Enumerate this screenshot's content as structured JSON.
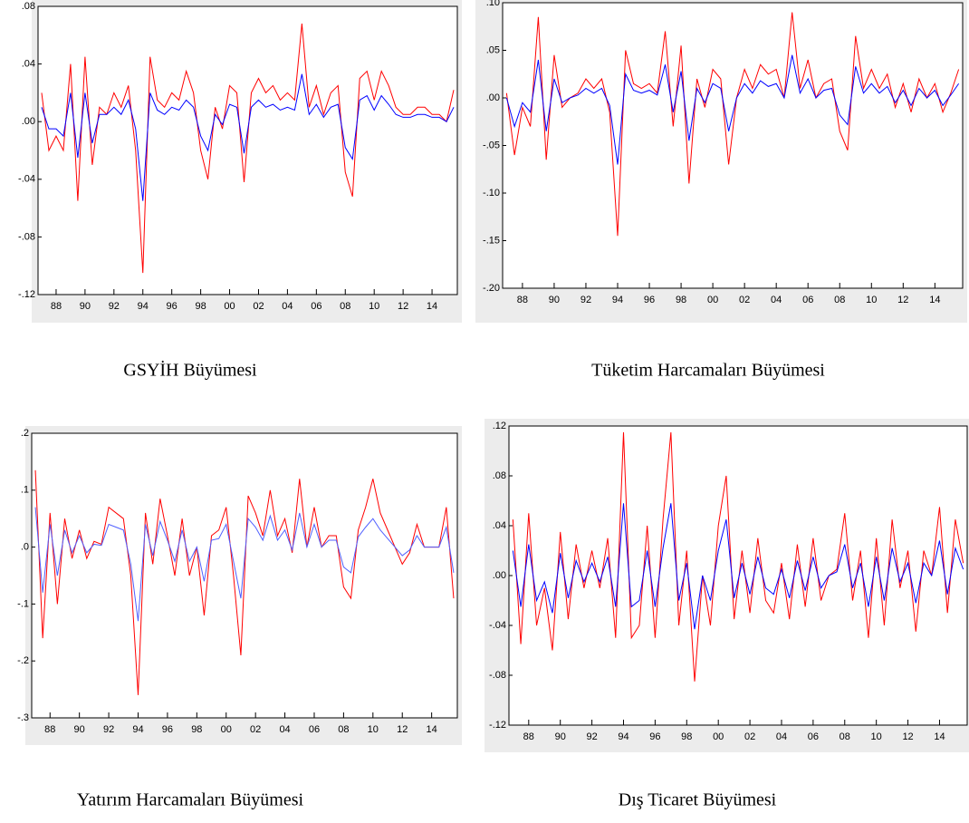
{
  "chart_data": [
    {
      "type": "line",
      "title": "GSYİH Büyümesi",
      "x": [
        1987,
        1987.5,
        1988,
        1988.5,
        1989,
        1989.5,
        1990,
        1990.5,
        1991,
        1991.5,
        1992,
        1992.5,
        1993,
        1993.5,
        1994,
        1994.5,
        1995,
        1995.5,
        1996,
        1996.5,
        1997,
        1997.5,
        1998,
        1998.5,
        1999,
        1999.5,
        2000,
        2000.5,
        2001,
        2001.5,
        2002,
        2002.5,
        2003,
        2003.5,
        2004,
        2004.5,
        2005,
        2005.5,
        2006,
        2006.5,
        2007,
        2007.5,
        2008,
        2008.5,
        2009,
        2009.5,
        2010,
        2010.5,
        2011,
        2011.5,
        2012,
        2012.5,
        2013,
        2013.5,
        2014,
        2014.5,
        2015,
        2015.5
      ],
      "series": [
        {
          "color": "#ff0000",
          "values": [
            0.02,
            -0.02,
            -0.01,
            -0.02,
            0.04,
            -0.055,
            0.045,
            -0.03,
            0.01,
            0.005,
            0.02,
            0.01,
            0.025,
            -0.02,
            -0.105,
            0.045,
            0.015,
            0.01,
            0.02,
            0.015,
            0.035,
            0.02,
            -0.02,
            -0.04,
            0.01,
            -0.005,
            0.025,
            0.02,
            -0.042,
            0.02,
            0.03,
            0.02,
            0.025,
            0.015,
            0.02,
            0.015,
            0.068,
            0.01,
            0.025,
            0.005,
            0.02,
            0.025,
            -0.035,
            -0.052,
            0.03,
            0.035,
            0.015,
            0.035,
            0.025,
            0.01,
            0.005,
            0.005,
            0.01,
            0.01,
            0.005,
            0.005,
            0.0,
            0.022
          ]
        },
        {
          "color": "#0000ff",
          "values": [
            0.01,
            -0.005,
            -0.005,
            -0.01,
            0.02,
            -0.025,
            0.02,
            -0.015,
            0.005,
            0.005,
            0.01,
            0.005,
            0.015,
            -0.005,
            -0.055,
            0.02,
            0.008,
            0.005,
            0.01,
            0.008,
            0.015,
            0.01,
            -0.01,
            -0.02,
            0.005,
            -0.002,
            0.012,
            0.01,
            -0.022,
            0.01,
            0.015,
            0.01,
            0.012,
            0.008,
            0.01,
            0.008,
            0.033,
            0.005,
            0.012,
            0.003,
            0.01,
            0.012,
            -0.018,
            -0.026,
            0.015,
            0.018,
            0.008,
            0.018,
            0.012,
            0.005,
            0.003,
            0.003,
            0.005,
            0.005,
            0.003,
            0.003,
            0.0,
            0.01
          ]
        }
      ],
      "xlim": [
        1986.75,
        2015.75
      ],
      "xticks": [
        {
          "value": 1988,
          "label": "88"
        },
        {
          "value": 1990,
          "label": "90"
        },
        {
          "value": 1992,
          "label": "92"
        },
        {
          "value": 1994,
          "label": "94"
        },
        {
          "value": 1996,
          "label": "96"
        },
        {
          "value": 1998,
          "label": "98"
        },
        {
          "value": 2000,
          "label": "00"
        },
        {
          "value": 2002,
          "label": "02"
        },
        {
          "value": 2004,
          "label": "04"
        },
        {
          "value": 2006,
          "label": "06"
        },
        {
          "value": 2008,
          "label": "08"
        },
        {
          "value": 2010,
          "label": "10"
        },
        {
          "value": 2012,
          "label": "12"
        },
        {
          "value": 2014,
          "label": "14"
        }
      ],
      "ylim": [
        -0.12,
        0.08
      ],
      "yticks": [
        {
          "value": -0.12,
          "label": "-.12"
        },
        {
          "value": -0.08,
          "label": "-.08"
        },
        {
          "value": -0.04,
          "label": "-.04"
        },
        {
          "value": 0,
          "label": ".00"
        },
        {
          "value": 0.04,
          "label": ".04"
        },
        {
          "value": 0.08,
          "label": ".08"
        }
      ]
    },
    {
      "type": "line",
      "title": "Tüketim Harcamaları Büyümesi",
      "x": [
        1987,
        1987.5,
        1988,
        1988.5,
        1989,
        1989.5,
        1990,
        1990.5,
        1991,
        1991.5,
        1992,
        1992.5,
        1993,
        1993.5,
        1994,
        1994.5,
        1995,
        1995.5,
        1996,
        1996.5,
        1997,
        1997.5,
        1998,
        1998.5,
        1999,
        1999.5,
        2000,
        2000.5,
        2001,
        2001.5,
        2002,
        2002.5,
        2003,
        2003.5,
        2004,
        2004.5,
        2005,
        2005.5,
        2006,
        2006.5,
        2007,
        2007.5,
        2008,
        2008.5,
        2009,
        2009.5,
        2010,
        2010.5,
        2011,
        2011.5,
        2012,
        2012.5,
        2013,
        2013.5,
        2014,
        2014.5,
        2015,
        2015.5
      ],
      "series": [
        {
          "color": "#ff0000",
          "values": [
            0.005,
            -0.06,
            -0.01,
            -0.03,
            0.085,
            -0.065,
            0.045,
            -0.01,
            0.0,
            0.005,
            0.02,
            0.01,
            0.02,
            -0.015,
            -0.145,
            0.05,
            0.015,
            0.01,
            0.015,
            0.005,
            0.07,
            -0.03,
            0.055,
            -0.09,
            0.02,
            -0.01,
            0.03,
            0.02,
            -0.07,
            0.0,
            0.03,
            0.01,
            0.035,
            0.025,
            0.03,
            0.0,
            0.09,
            0.01,
            0.04,
            0.0,
            0.015,
            0.02,
            -0.035,
            -0.055,
            0.065,
            0.01,
            0.03,
            0.01,
            0.025,
            -0.01,
            0.015,
            -0.015,
            0.02,
            0.0,
            0.015,
            -0.015,
            0.005,
            0.03
          ]
        },
        {
          "color": "#0000ff",
          "values": [
            0.0,
            -0.03,
            -0.005,
            -0.015,
            0.04,
            -0.035,
            0.02,
            -0.005,
            0.0,
            0.003,
            0.01,
            0.005,
            0.01,
            -0.008,
            -0.07,
            0.025,
            0.008,
            0.005,
            0.008,
            0.003,
            0.035,
            -0.015,
            0.028,
            -0.045,
            0.01,
            -0.005,
            0.015,
            0.01,
            -0.035,
            0.0,
            0.015,
            0.005,
            0.018,
            0.012,
            0.015,
            0.0,
            0.045,
            0.005,
            0.02,
            0.0,
            0.008,
            0.01,
            -0.018,
            -0.028,
            0.033,
            0.005,
            0.015,
            0.005,
            0.012,
            -0.005,
            0.008,
            -0.008,
            0.01,
            0.0,
            0.008,
            -0.008,
            0.003,
            0.015
          ]
        }
      ],
      "xlim": [
        1986.75,
        2015.75
      ],
      "xticks": [
        {
          "value": 1988,
          "label": "88"
        },
        {
          "value": 1990,
          "label": "90"
        },
        {
          "value": 1992,
          "label": "92"
        },
        {
          "value": 1994,
          "label": "94"
        },
        {
          "value": 1996,
          "label": "96"
        },
        {
          "value": 1998,
          "label": "98"
        },
        {
          "value": 2000,
          "label": "00"
        },
        {
          "value": 2002,
          "label": "02"
        },
        {
          "value": 2004,
          "label": "04"
        },
        {
          "value": 2006,
          "label": "06"
        },
        {
          "value": 2008,
          "label": "08"
        },
        {
          "value": 2010,
          "label": "10"
        },
        {
          "value": 2012,
          "label": "12"
        },
        {
          "value": 2014,
          "label": "14"
        }
      ],
      "ylim": [
        -0.2,
        0.1
      ],
      "yticks": [
        {
          "value": -0.2,
          "label": "-.20"
        },
        {
          "value": -0.15,
          "label": "-.15"
        },
        {
          "value": -0.1,
          "label": "-.10"
        },
        {
          "value": -0.05,
          "label": "-.05"
        },
        {
          "value": 0,
          "label": ".00"
        },
        {
          "value": 0.05,
          "label": ".05"
        },
        {
          "value": 0.1,
          "label": ".10"
        }
      ]
    },
    {
      "type": "line",
      "title": "Yatırım Harcamaları Büyümesi",
      "x": [
        1987,
        1987.5,
        1988,
        1988.5,
        1989,
        1989.5,
        1990,
        1990.5,
        1991,
        1991.5,
        1992,
        1992.5,
        1993,
        1993.5,
        1994,
        1994.5,
        1995,
        1995.5,
        1996,
        1996.5,
        1997,
        1997.5,
        1998,
        1998.5,
        1999,
        1999.5,
        2000,
        2000.5,
        2001,
        2001.5,
        2002,
        2002.5,
        2003,
        2003.5,
        2004,
        2004.5,
        2005,
        2005.5,
        2006,
        2006.5,
        2007,
        2007.5,
        2008,
        2008.5,
        2009,
        2009.5,
        2010,
        2010.5,
        2011,
        2011.5,
        2012,
        2012.5,
        2013,
        2013.5,
        2014,
        2014.5,
        2015,
        2015.5
      ],
      "series": [
        {
          "color": "#ff0000",
          "values": [
            0.135,
            -0.16,
            0.06,
            -0.1,
            0.05,
            -0.02,
            0.03,
            -0.02,
            0.01,
            0.005,
            0.07,
            0.06,
            0.05,
            -0.05,
            -0.26,
            0.06,
            -0.03,
            0.085,
            0.02,
            -0.05,
            0.05,
            -0.05,
            0.0,
            -0.12,
            0.02,
            0.03,
            0.07,
            -0.05,
            -0.19,
            0.09,
            0.06,
            0.02,
            0.1,
            0.02,
            0.05,
            -0.01,
            0.12,
            0.0,
            0.07,
            0.0,
            0.02,
            0.02,
            -0.07,
            -0.09,
            0.03,
            0.07,
            0.12,
            0.06,
            0.03,
            0.0,
            -0.03,
            -0.01,
            0.04,
            0.0,
            0.0,
            0.0,
            0.07,
            -0.09
          ]
        },
        {
          "color": "#4f5fff",
          "values": [
            0.07,
            -0.08,
            0.04,
            -0.05,
            0.03,
            -0.01,
            0.02,
            -0.01,
            0.005,
            0.003,
            0.04,
            0.035,
            0.03,
            -0.03,
            -0.13,
            0.04,
            -0.015,
            0.045,
            0.012,
            -0.025,
            0.03,
            -0.025,
            0.0,
            -0.06,
            0.012,
            0.015,
            0.04,
            -0.025,
            -0.09,
            0.05,
            0.035,
            0.012,
            0.055,
            0.012,
            0.03,
            -0.005,
            0.06,
            0.0,
            0.04,
            0.0,
            0.012,
            0.012,
            -0.035,
            -0.045,
            0.018,
            0.035,
            0.05,
            0.03,
            0.015,
            0.0,
            -0.015,
            -0.005,
            0.02,
            0.0,
            0.0,
            0.0,
            0.035,
            -0.045
          ]
        }
      ],
      "xlim": [
        1986.75,
        2015.75
      ],
      "xticks": [
        {
          "value": 1988,
          "label": "88"
        },
        {
          "value": 1990,
          "label": "90"
        },
        {
          "value": 1992,
          "label": "92"
        },
        {
          "value": 1994,
          "label": "94"
        },
        {
          "value": 1996,
          "label": "96"
        },
        {
          "value": 1998,
          "label": "98"
        },
        {
          "value": 2000,
          "label": "00"
        },
        {
          "value": 2002,
          "label": "02"
        },
        {
          "value": 2004,
          "label": "04"
        },
        {
          "value": 2006,
          "label": "06"
        },
        {
          "value": 2008,
          "label": "08"
        },
        {
          "value": 2010,
          "label": "10"
        },
        {
          "value": 2012,
          "label": "12"
        },
        {
          "value": 2014,
          "label": "14"
        }
      ],
      "ylim": [
        -0.3,
        0.2
      ],
      "yticks": [
        {
          "value": -0.3,
          "label": "-.3"
        },
        {
          "value": -0.2,
          "label": "-.2"
        },
        {
          "value": -0.1,
          "label": "-.1"
        },
        {
          "value": 0,
          "label": ".0"
        },
        {
          "value": 0.1,
          "label": ".1"
        },
        {
          "value": 0.2,
          "label": ".2"
        }
      ]
    },
    {
      "type": "line",
      "title": "Dış Ticaret Büyümesi",
      "x": [
        1987,
        1987.5,
        1988,
        1988.5,
        1989,
        1989.5,
        1990,
        1990.5,
        1991,
        1991.5,
        1992,
        1992.5,
        1993,
        1993.5,
        1994,
        1994.5,
        1995,
        1995.5,
        1996,
        1996.5,
        1997,
        1997.5,
        1998,
        1998.5,
        1999,
        1999.5,
        2000,
        2000.5,
        2001,
        2001.5,
        2002,
        2002.5,
        2003,
        2003.5,
        2004,
        2004.5,
        2005,
        2005.5,
        2006,
        2006.5,
        2007,
        2007.5,
        2008,
        2008.5,
        2009,
        2009.5,
        2010,
        2010.5,
        2011,
        2011.5,
        2012,
        2012.5,
        2013,
        2013.5,
        2014,
        2014.5,
        2015,
        2015.5
      ],
      "series": [
        {
          "color": "#ff0000",
          "values": [
            0.045,
            -0.055,
            0.05,
            -0.04,
            -0.01,
            -0.06,
            0.035,
            -0.035,
            0.025,
            -0.01,
            0.02,
            -0.01,
            0.03,
            -0.05,
            0.115,
            -0.05,
            -0.04,
            0.04,
            -0.05,
            0.045,
            0.115,
            -0.04,
            0.02,
            -0.085,
            0.0,
            -0.04,
            0.04,
            0.08,
            -0.035,
            0.02,
            -0.03,
            0.03,
            -0.02,
            -0.03,
            0.01,
            -0.035,
            0.025,
            -0.025,
            0.03,
            -0.02,
            0.0,
            0.005,
            0.05,
            -0.02,
            0.02,
            -0.05,
            0.03,
            -0.04,
            0.045,
            -0.01,
            0.02,
            -0.045,
            0.02,
            0.0,
            0.055,
            -0.03,
            0.045,
            0.01
          ]
        },
        {
          "color": "#0000ff",
          "values": [
            0.02,
            -0.025,
            0.025,
            -0.02,
            -0.005,
            -0.03,
            0.018,
            -0.018,
            0.012,
            -0.005,
            0.01,
            -0.005,
            0.015,
            -0.025,
            0.058,
            -0.025,
            -0.02,
            0.02,
            -0.025,
            0.022,
            0.058,
            -0.02,
            0.01,
            -0.043,
            0.0,
            -0.02,
            0.02,
            0.045,
            -0.018,
            0.01,
            -0.015,
            0.015,
            -0.01,
            -0.015,
            0.005,
            -0.018,
            0.012,
            -0.012,
            0.015,
            -0.01,
            0.0,
            0.003,
            0.025,
            -0.01,
            0.01,
            -0.025,
            0.015,
            -0.02,
            0.022,
            -0.005,
            0.01,
            -0.022,
            0.01,
            0.0,
            0.028,
            -0.015,
            0.022,
            0.005
          ]
        }
      ],
      "xlim": [
        1986.75,
        2015.75
      ],
      "xticks": [
        {
          "value": 1988,
          "label": "88"
        },
        {
          "value": 1990,
          "label": "90"
        },
        {
          "value": 1992,
          "label": "92"
        },
        {
          "value": 1994,
          "label": "94"
        },
        {
          "value": 1996,
          "label": "96"
        },
        {
          "value": 1998,
          "label": "98"
        },
        {
          "value": 2000,
          "label": "00"
        },
        {
          "value": 2002,
          "label": "02"
        },
        {
          "value": 2004,
          "label": "04"
        },
        {
          "value": 2006,
          "label": "06"
        },
        {
          "value": 2008,
          "label": "08"
        },
        {
          "value": 2010,
          "label": "10"
        },
        {
          "value": 2012,
          "label": "12"
        },
        {
          "value": 2014,
          "label": "14"
        }
      ],
      "ylim": [
        -0.12,
        0.12
      ],
      "yticks": [
        {
          "value": -0.12,
          "label": "-.12"
        },
        {
          "value": -0.08,
          "label": "-.08"
        },
        {
          "value": -0.04,
          "label": "-.04"
        },
        {
          "value": 0,
          "label": ".00"
        },
        {
          "value": 0.04,
          "label": ".04"
        },
        {
          "value": 0.08,
          "label": ".08"
        },
        {
          "value": 0.12,
          "label": ".12"
        }
      ]
    }
  ]
}
